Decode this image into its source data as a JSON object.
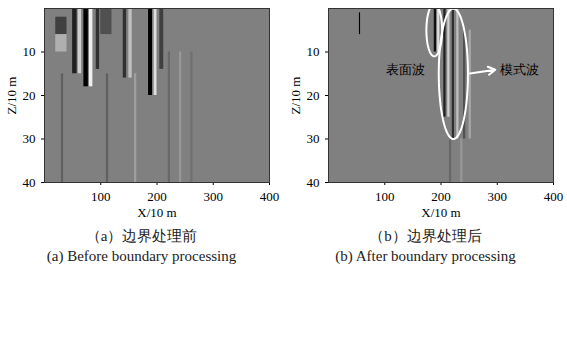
{
  "chart_data": [
    {
      "type": "heatmap",
      "title": "（a）边界处理前",
      "subtitle": "(a) Before boundary processing",
      "xlabel": "X/10 m",
      "ylabel": "Z/10 m",
      "xlim": [
        0,
        400
      ],
      "xticks": [
        100,
        200,
        300,
        400
      ],
      "ylim": [
        0,
        40
      ],
      "yticks": [
        10,
        20,
        30,
        40
      ],
      "stripes": [
        [
          50,
          58,
          0,
          15,
          -0.6
        ],
        [
          60,
          66,
          0,
          15,
          0.5
        ],
        [
          70,
          78,
          0,
          18,
          -0.8
        ],
        [
          80,
          86,
          0,
          18,
          0.7
        ],
        [
          92,
          98,
          0,
          14,
          -0.5
        ],
        [
          140,
          146,
          0,
          16,
          -0.5
        ],
        [
          150,
          156,
          0,
          16,
          0.4
        ],
        [
          185,
          192,
          0,
          20,
          -0.8
        ],
        [
          195,
          200,
          0,
          20,
          0.6
        ],
        [
          205,
          212,
          0,
          14,
          -0.4
        ],
        [
          20,
          40,
          2,
          6,
          -0.4
        ],
        [
          20,
          40,
          6,
          10,
          0.3
        ],
        [
          100,
          120,
          0,
          6,
          -0.3
        ],
        [
          30,
          34,
          15,
          40,
          -0.2
        ],
        [
          110,
          114,
          15,
          40,
          -0.2
        ],
        [
          160,
          164,
          15,
          40,
          0.2
        ],
        [
          220,
          224,
          10,
          40,
          -0.15
        ],
        [
          240,
          244,
          10,
          40,
          0.15
        ],
        [
          260,
          264,
          10,
          40,
          -0.1
        ]
      ],
      "annotations": []
    },
    {
      "type": "heatmap",
      "title": "（b）边界处理后",
      "subtitle": "(b) After boundary processing",
      "xlabel": "X/10 m",
      "ylabel": "Z/10 m",
      "xlim": [
        0,
        400
      ],
      "xticks": [
        100,
        200,
        300,
        400
      ],
      "ylim": [
        0,
        40
      ],
      "yticks": [
        10,
        20,
        30,
        40
      ],
      "stripes": [
        [
          55,
          57,
          1,
          6,
          -0.8
        ],
        [
          188,
          192,
          0,
          10,
          -0.7
        ],
        [
          194,
          198,
          0,
          10,
          0.6
        ],
        [
          205,
          209,
          0,
          25,
          -0.6
        ],
        [
          212,
          216,
          0,
          25,
          0.5
        ],
        [
          220,
          224,
          0,
          30,
          -0.5
        ],
        [
          228,
          232,
          0,
          30,
          0.4
        ],
        [
          240,
          244,
          5,
          30,
          -0.3
        ],
        [
          250,
          254,
          5,
          30,
          0.25
        ],
        [
          215,
          219,
          30,
          40,
          -0.15
        ],
        [
          235,
          239,
          30,
          40,
          0.15
        ]
      ],
      "annotations": [
        {
          "text": "表面波",
          "x": 172,
          "z": 14,
          "ellipse": [
            188,
            5,
            14,
            6
          ],
          "arrow": false
        },
        {
          "text": "模式波",
          "x": 300,
          "z": 14,
          "ellipse": [
            222,
            15,
            26,
            15
          ],
          "arrow": true
        }
      ]
    }
  ]
}
